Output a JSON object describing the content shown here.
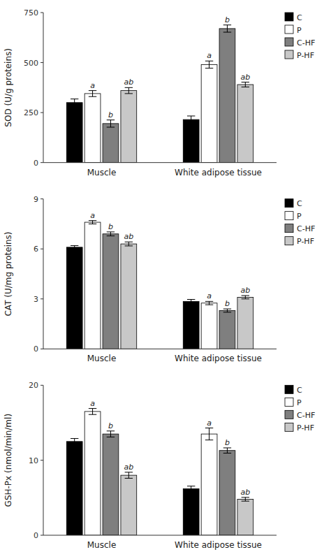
{
  "chart_data": [
    {
      "type": "bar",
      "ylabel": "SOD (U/g proteins)",
      "categories": [
        "Muscle",
        "White adipose tissue"
      ],
      "ylim": [
        0,
        750
      ],
      "yticks": [
        0,
        250,
        500,
        750
      ],
      "grid": false,
      "legend": "upper right",
      "series": [
        {
          "name": "C",
          "color": "#000000",
          "values": [
            300,
            215
          ],
          "errors": [
            18,
            18
          ]
        },
        {
          "name": "P",
          "color": "#ffffff",
          "values": [
            345,
            490
          ],
          "errors": [
            15,
            18
          ],
          "annotations": [
            "a",
            "a"
          ]
        },
        {
          "name": "C-HF",
          "color": "#7f7f7f",
          "values": [
            195,
            670
          ],
          "errors": [
            18,
            18
          ],
          "annotations": [
            "b",
            "b"
          ]
        },
        {
          "name": "P-HF",
          "color": "#c8c8c8",
          "values": [
            360,
            390
          ],
          "errors": [
            15,
            12
          ],
          "annotations": [
            "ab",
            "ab"
          ]
        }
      ]
    },
    {
      "type": "bar",
      "ylabel": "CAT (U/mg proteins)",
      "categories": [
        "Muscle",
        "White adipose tissue"
      ],
      "ylim": [
        0,
        9
      ],
      "yticks": [
        0,
        3,
        6,
        9
      ],
      "grid": false,
      "legend": "upper right",
      "series": [
        {
          "name": "C",
          "color": "#000000",
          "values": [
            6.1,
            2.85
          ],
          "errors": [
            0.1,
            0.12
          ]
        },
        {
          "name": "P",
          "color": "#ffffff",
          "values": [
            7.6,
            2.75
          ],
          "errors": [
            0.1,
            0.1
          ],
          "annotations": [
            "a",
            "a"
          ]
        },
        {
          "name": "C-HF",
          "color": "#7f7f7f",
          "values": [
            6.9,
            2.3
          ],
          "errors": [
            0.12,
            0.1
          ],
          "annotations": [
            "b",
            "b"
          ]
        },
        {
          "name": "P-HF",
          "color": "#c8c8c8",
          "values": [
            6.3,
            3.1
          ],
          "errors": [
            0.12,
            0.1
          ],
          "annotations": [
            "ab",
            "ab"
          ]
        }
      ]
    },
    {
      "type": "bar",
      "ylabel": "GSH-Px (nmol/min/ml)",
      "categories": [
        "Muscle",
        "White adipose tissue"
      ],
      "ylim": [
        0,
        20
      ],
      "yticks": [
        0,
        10,
        20
      ],
      "grid": false,
      "legend": "upper right",
      "series": [
        {
          "name": "C",
          "color": "#000000",
          "values": [
            12.5,
            6.2
          ],
          "errors": [
            0.4,
            0.35
          ]
        },
        {
          "name": "P",
          "color": "#ffffff",
          "values": [
            16.5,
            13.5
          ],
          "errors": [
            0.4,
            0.8
          ],
          "annotations": [
            "a",
            "a"
          ]
        },
        {
          "name": "C-HF",
          "color": "#7f7f7f",
          "values": [
            13.5,
            11.3
          ],
          "errors": [
            0.4,
            0.35
          ],
          "annotations": [
            "b",
            "b"
          ]
        },
        {
          "name": "P-HF",
          "color": "#c8c8c8",
          "values": [
            8.0,
            4.8
          ],
          "errors": [
            0.4,
            0.25
          ],
          "annotations": [
            "ab",
            "ab"
          ]
        }
      ]
    }
  ]
}
